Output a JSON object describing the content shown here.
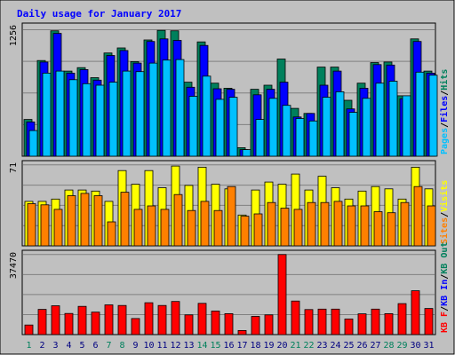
{
  "chart_data": {
    "type": "bar",
    "title": "Daily usage for January 2017",
    "categories": [
      "1",
      "2",
      "3",
      "4",
      "5",
      "6",
      "7",
      "8",
      "9",
      "10",
      "11",
      "12",
      "13",
      "14",
      "15",
      "16",
      "17",
      "18",
      "19",
      "20",
      "21",
      "22",
      "23",
      "24",
      "25",
      "26",
      "27",
      "28",
      "29",
      "30",
      "31"
    ],
    "weekend_days": [
      1,
      7,
      8,
      14,
      15,
      21,
      22,
      28,
      29
    ],
    "colors": {
      "background": "#C0C0C0",
      "title": "#0000FF",
      "hits": "#00805C",
      "files": "#0000FF",
      "pages": "#00C0FF",
      "visits": "#FFFF00",
      "sites": "#FF8000",
      "kbytes": "#FF0000",
      "weekday_label": "#000080",
      "weekend_label": "#00805C"
    },
    "panels": [
      {
        "id": "top",
        "ymax": 1256,
        "ymax_label": "1256",
        "legend": [
          {
            "label": "Pages",
            "color": "#00C0FF"
          },
          {
            "label": "Files",
            "color": "#0000FF"
          },
          {
            "label": "Hits",
            "color": "#00805C"
          }
        ],
        "series": [
          {
            "name": "Hits",
            "color": "#00805C",
            "values": [
              365,
              950,
              1245,
              845,
              880,
              780,
              1025,
              1075,
              940,
              1155,
              1250,
              1245,
              735,
              1135,
              725,
              675,
              85,
              665,
              705,
              965,
              475,
              425,
              885,
              885,
              555,
              725,
              930,
              935,
              600,
              1165,
              845
            ]
          },
          {
            "name": "Files",
            "color": "#0000FF",
            "values": [
              340,
              935,
              1220,
              825,
              860,
              755,
              1000,
              1050,
              925,
              1140,
              1165,
              1150,
              685,
              1100,
              670,
              665,
              65,
              610,
              665,
              735,
              390,
              425,
              705,
              845,
              470,
              675,
              910,
              905,
              570,
              1140,
              825
            ]
          },
          {
            "name": "Pages",
            "color": "#00C0FF",
            "values": [
              255,
              825,
              845,
              760,
              720,
              705,
              735,
              845,
              840,
              925,
              955,
              960,
              595,
              795,
              565,
              585,
              65,
              365,
              575,
              505,
              375,
              350,
              585,
              640,
              435,
              575,
              725,
              745,
              600,
              835,
              805
            ]
          }
        ]
      },
      {
        "id": "middle",
        "ymax": 71,
        "ymax_label": "71",
        "legend": [
          {
            "label": "Sites",
            "color": "#FF8000"
          },
          {
            "label": "Visits",
            "color": "#FFFF00"
          }
        ],
        "series": [
          {
            "name": "Visits",
            "color": "#FFFF00",
            "values": [
              39,
              39,
              41,
              49,
              49,
              48,
              39,
              66,
              54,
              66,
              51,
              70,
              53,
              69,
              54,
              50,
              27,
              49,
              56,
              54,
              63,
              49,
              61,
              51,
              41,
              48,
              52,
              50,
              41,
              69,
              50
            ]
          },
          {
            "name": "Sites",
            "color": "#FF8000",
            "values": [
              37,
              36,
              32,
              44,
              46,
              44,
              21,
              47,
              32,
              35,
              32,
              45,
              31,
              39,
              31,
              52,
              26,
              28,
              38,
              33,
              32,
              38,
              38,
              39,
              35,
              35,
              30,
              29,
              38,
              52,
              35
            ]
          }
        ]
      },
      {
        "id": "bottom",
        "ymax": 37470,
        "ymax_label": "37470",
        "legend": [
          {
            "label": "KB F",
            "color": "#FF0000"
          },
          {
            "label": "KB In",
            "color": "#0000FF"
          },
          {
            "label": "KB Out",
            "color": "#00805C"
          }
        ],
        "series": [
          {
            "name": "KBytes",
            "color": "#FF0000",
            "values": [
              4500,
              11800,
              13500,
              9900,
              13200,
              10500,
              13900,
              13600,
              7500,
              14900,
              13600,
              15500,
              9200,
              14600,
              11000,
              9800,
              1900,
              8500,
              9200,
              37470,
              15700,
              11700,
              11900,
              11900,
              7300,
              9700,
              11900,
              9800,
              14500,
              20500,
              12200
            ]
          },
          {
            "name": "KBIn",
            "color": "#0000FF",
            "values": [
              0,
              0,
              0,
              0,
              0,
              0,
              0,
              0,
              0,
              0,
              0,
              0,
              0,
              0,
              0,
              0,
              0,
              0,
              0,
              0,
              0,
              0,
              0,
              0,
              0,
              0,
              0,
              0,
              0,
              0,
              0
            ]
          }
        ]
      }
    ]
  }
}
